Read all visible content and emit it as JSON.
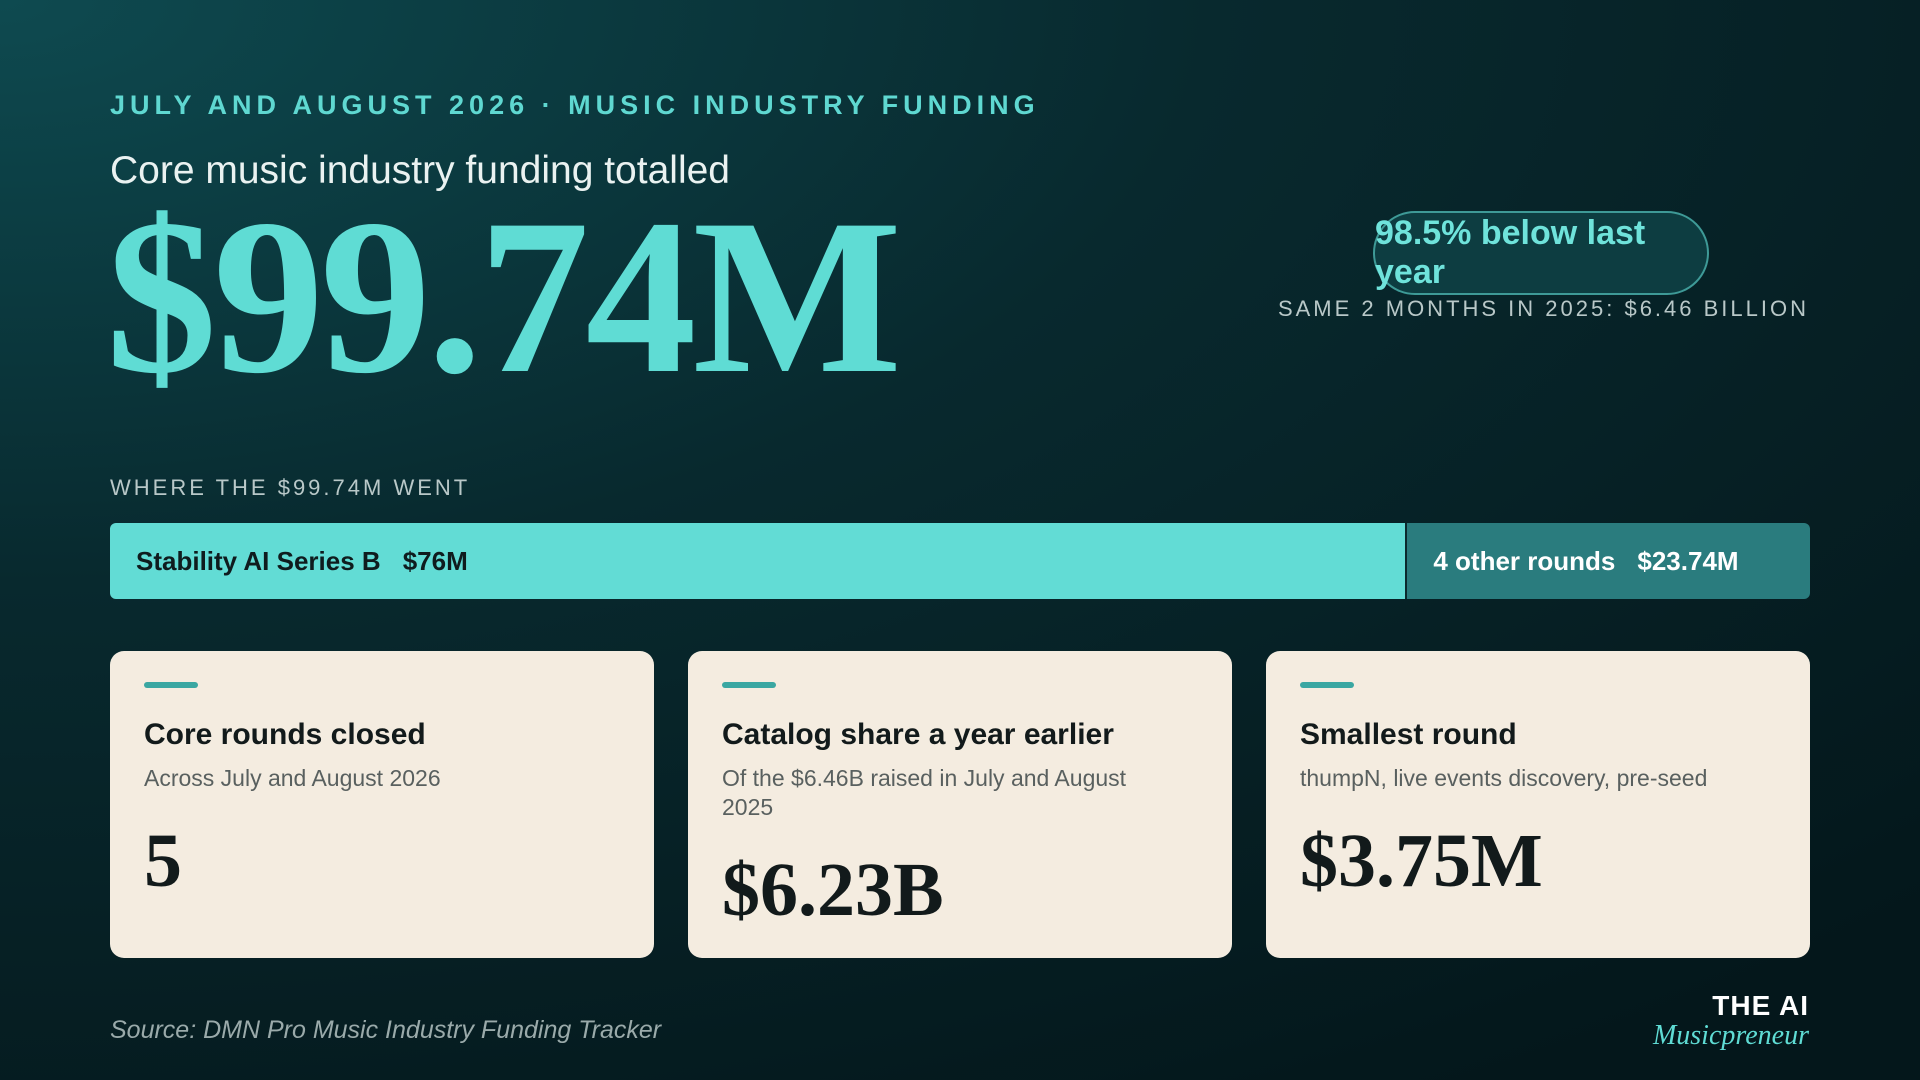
{
  "header": {
    "kicker": "JULY AND AUGUST 2026 · MUSIC INDUSTRY FUNDING",
    "lead": "Core music industry funding totalled",
    "total": "$99.74M"
  },
  "comparison": {
    "badge": "98.5% below last year",
    "note": "SAME 2 MONTHS IN 2025: $6.46 BILLION"
  },
  "allocation": {
    "title": "WHERE THE $99.74M WENT",
    "segments": [
      {
        "name": "Stability AI Series B",
        "value": 76,
        "label": "$76M",
        "color": "#62dcd5"
      },
      {
        "name": "4 other rounds",
        "value": 23.74,
        "label": "$23.74M",
        "color": "#2a7c7e"
      }
    ]
  },
  "cards": [
    {
      "title": "Core rounds closed",
      "subtitle": "Across July and August 2026",
      "value": "5"
    },
    {
      "title": "Catalog share a year earlier",
      "subtitle": "Of the $6.46B raised in July and August 2025",
      "value": "$6.23B"
    },
    {
      "title": "Smallest round",
      "subtitle": "thumpN, live events discovery, pre-seed",
      "value": "$3.75M"
    }
  ],
  "footer": {
    "source": "Source: DMN Pro Music Industry Funding Tracker",
    "brand_top": "THE AI",
    "brand_bottom": "Musicpreneur"
  }
}
